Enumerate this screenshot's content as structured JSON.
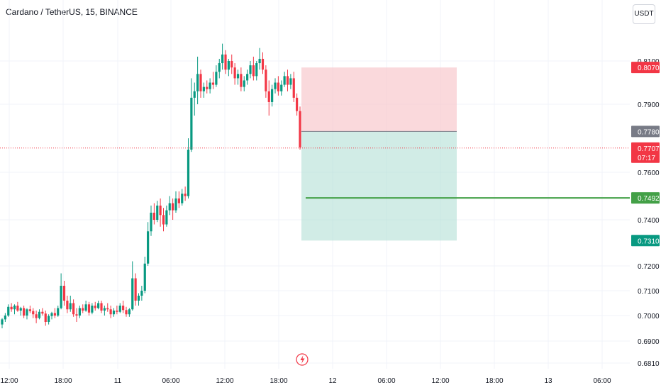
{
  "header": {
    "title": "Cardano / TetherUS, 15, BINANCE",
    "currency": "USDT"
  },
  "colors": {
    "up": "#089981",
    "down": "#f23645",
    "grid": "#f0f3fa",
    "stop_zone": "#f7c5c9",
    "target_zone": "#b2dfd6",
    "entry_tag": "#787b86",
    "target_line": "#43a047"
  },
  "chart_data": {
    "type": "candlestick",
    "symbol": "Cardano / TetherUS",
    "interval": "15",
    "exchange": "BINANCE",
    "price_ticks": [
      "0.8100",
      "0.7900",
      "0.7600",
      "0.7400",
      "0.7200",
      "0.7100",
      "0.7000",
      "0.6900",
      "0.6810"
    ],
    "time_ticks": [
      "12:00",
      "18:00",
      "11",
      "06:00",
      "12:00",
      "18:00",
      "12",
      "06:00",
      "12:00",
      "18:00",
      "13",
      "06:00"
    ],
    "current_price": {
      "value": "0.7707",
      "countdown": "07:17"
    },
    "position": {
      "direction": "short",
      "entry": "0.7780",
      "stop": "0.8070",
      "target": "0.7310"
    },
    "horizontal_line": "0.7492",
    "candles": [
      [
        0.6965,
        0.699,
        0.695,
        0.6985
      ],
      [
        0.6985,
        0.701,
        0.6975,
        0.7
      ],
      [
        0.7,
        0.7045,
        0.6995,
        0.7035
      ],
      [
        0.7035,
        0.705,
        0.7015,
        0.7025
      ],
      [
        0.7025,
        0.7045,
        0.7005,
        0.704
      ],
      [
        0.704,
        0.7055,
        0.7015,
        0.702
      ],
      [
        0.702,
        0.7035,
        0.7,
        0.703
      ],
      [
        0.703,
        0.704,
        0.699,
        0.7
      ],
      [
        0.7,
        0.703,
        0.6985,
        0.7025
      ],
      [
        0.7025,
        0.704,
        0.701,
        0.7018
      ],
      [
        0.7018,
        0.703,
        0.699,
        0.7005
      ],
      [
        0.7005,
        0.702,
        0.697,
        0.699
      ],
      [
        0.699,
        0.7025,
        0.6985,
        0.7015
      ],
      [
        0.7015,
        0.703,
        0.7,
        0.7008
      ],
      [
        0.7008,
        0.702,
        0.696,
        0.6975
      ],
      [
        0.6975,
        0.7005,
        0.6965,
        0.6998
      ],
      [
        0.6998,
        0.7015,
        0.6985,
        0.701
      ],
      [
        0.701,
        0.703,
        0.699,
        0.7
      ],
      [
        0.7,
        0.704,
        0.6995,
        0.703
      ],
      [
        0.703,
        0.717,
        0.7025,
        0.712
      ],
      [
        0.712,
        0.714,
        0.704,
        0.706
      ],
      [
        0.706,
        0.708,
        0.701,
        0.7025
      ],
      [
        0.7025,
        0.708,
        0.7015,
        0.705
      ],
      [
        0.705,
        0.7065,
        0.6995,
        0.7005
      ],
      [
        0.7005,
        0.703,
        0.6975,
        0.7
      ],
      [
        0.7,
        0.704,
        0.699,
        0.703
      ],
      [
        0.703,
        0.7045,
        0.701,
        0.702
      ],
      [
        0.702,
        0.706,
        0.7015,
        0.7045
      ],
      [
        0.7045,
        0.7055,
        0.7,
        0.7012
      ],
      [
        0.7012,
        0.705,
        0.7005,
        0.704
      ],
      [
        0.704,
        0.7055,
        0.702,
        0.703
      ],
      [
        0.703,
        0.706,
        0.7025,
        0.705
      ],
      [
        0.705,
        0.706,
        0.701,
        0.702
      ],
      [
        0.702,
        0.704,
        0.7,
        0.703
      ],
      [
        0.703,
        0.705,
        0.7015,
        0.7025
      ],
      [
        0.7025,
        0.704,
        0.699,
        0.7005
      ],
      [
        0.7005,
        0.703,
        0.6995,
        0.702
      ],
      [
        0.702,
        0.704,
        0.7005,
        0.7015
      ],
      [
        0.7015,
        0.705,
        0.701,
        0.704
      ],
      [
        0.704,
        0.706,
        0.701,
        0.7022
      ],
      [
        0.7022,
        0.7035,
        0.6995,
        0.7005
      ],
      [
        0.7005,
        0.703,
        0.6995,
        0.7025
      ],
      [
        0.7025,
        0.722,
        0.702,
        0.715
      ],
      [
        0.715,
        0.717,
        0.704,
        0.706
      ],
      [
        0.706,
        0.709,
        0.704,
        0.708
      ],
      [
        0.708,
        0.712,
        0.706,
        0.71
      ],
      [
        0.71,
        0.724,
        0.709,
        0.721
      ],
      [
        0.721,
        0.739,
        0.72,
        0.735
      ],
      [
        0.735,
        0.746,
        0.733,
        0.743
      ],
      [
        0.743,
        0.747,
        0.738,
        0.74
      ],
      [
        0.74,
        0.748,
        0.739,
        0.746
      ],
      [
        0.746,
        0.749,
        0.737,
        0.742
      ],
      [
        0.742,
        0.745,
        0.735,
        0.738
      ],
      [
        0.738,
        0.746,
        0.737,
        0.744
      ],
      [
        0.744,
        0.75,
        0.742,
        0.747
      ],
      [
        0.747,
        0.749,
        0.74,
        0.744
      ],
      [
        0.744,
        0.752,
        0.743,
        0.749
      ],
      [
        0.749,
        0.752,
        0.745,
        0.747
      ],
      [
        0.747,
        0.753,
        0.746,
        0.751
      ],
      [
        0.751,
        0.754,
        0.748,
        0.75
      ],
      [
        0.75,
        0.775,
        0.749,
        0.77
      ],
      [
        0.77,
        0.802,
        0.769,
        0.793
      ],
      [
        0.793,
        0.8,
        0.785,
        0.796
      ],
      [
        0.796,
        0.812,
        0.79,
        0.804
      ],
      [
        0.804,
        0.806,
        0.793,
        0.796
      ],
      [
        0.796,
        0.8,
        0.793,
        0.798
      ],
      [
        0.798,
        0.801,
        0.795,
        0.797
      ],
      [
        0.797,
        0.802,
        0.795,
        0.8
      ],
      [
        0.8,
        0.805,
        0.797,
        0.799
      ],
      [
        0.799,
        0.808,
        0.798,
        0.805
      ],
      [
        0.805,
        0.811,
        0.802,
        0.809
      ],
      [
        0.809,
        0.818,
        0.806,
        0.813
      ],
      [
        0.813,
        0.815,
        0.804,
        0.806
      ],
      [
        0.806,
        0.811,
        0.803,
        0.81
      ],
      [
        0.81,
        0.813,
        0.804,
        0.807
      ],
      [
        0.807,
        0.809,
        0.799,
        0.802
      ],
      [
        0.802,
        0.806,
        0.799,
        0.804
      ],
      [
        0.804,
        0.807,
        0.796,
        0.798
      ],
      [
        0.798,
        0.803,
        0.796,
        0.801
      ],
      [
        0.801,
        0.806,
        0.799,
        0.804
      ],
      [
        0.804,
        0.81,
        0.802,
        0.808
      ],
      [
        0.808,
        0.812,
        0.801,
        0.803
      ],
      [
        0.803,
        0.81,
        0.801,
        0.809
      ],
      [
        0.809,
        0.816,
        0.806,
        0.811
      ],
      [
        0.811,
        0.814,
        0.804,
        0.806
      ],
      [
        0.806,
        0.808,
        0.793,
        0.796
      ],
      [
        0.796,
        0.801,
        0.785,
        0.791
      ],
      [
        0.791,
        0.799,
        0.789,
        0.797
      ],
      [
        0.797,
        0.802,
        0.795,
        0.8
      ],
      [
        0.8,
        0.803,
        0.794,
        0.796
      ],
      [
        0.796,
        0.801,
        0.794,
        0.799
      ],
      [
        0.799,
        0.805,
        0.798,
        0.803
      ],
      [
        0.803,
        0.806,
        0.796,
        0.799
      ],
      [
        0.799,
        0.804,
        0.797,
        0.802
      ],
      [
        0.802,
        0.805,
        0.791,
        0.793
      ],
      [
        0.793,
        0.795,
        0.785,
        0.787
      ],
      [
        0.787,
        0.789,
        0.77,
        0.771
      ]
    ]
  }
}
